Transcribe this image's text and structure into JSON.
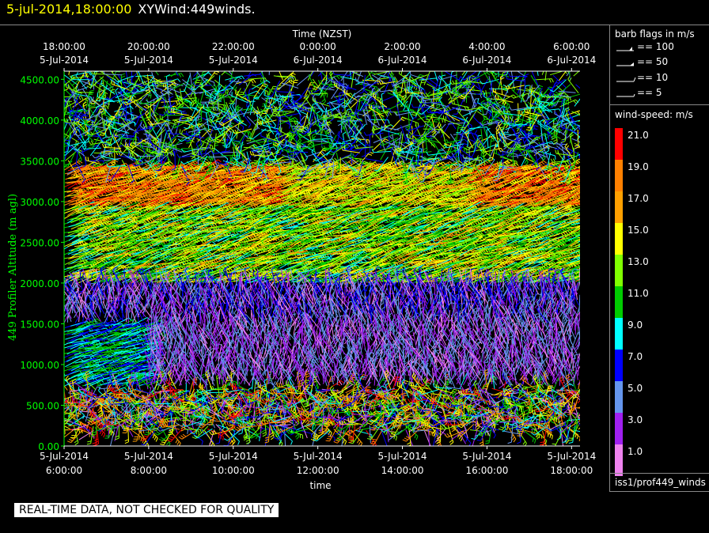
{
  "title": {
    "datetime": "5-jul-2014,18:00:00",
    "text": "XYWind:449winds."
  },
  "chart_data": {
    "type": "wind-barb",
    "top_axis_title": "Time (NZST)",
    "xlabel": "time",
    "ylabel": "449 Profiler Altitude (m agl)",
    "ylim": [
      0,
      4600
    ],
    "y_ticks": [
      "0.00",
      "500.00",
      "1000.00",
      "1500.00",
      "2000.00",
      "2500.00",
      "3000.00",
      "3500.00",
      "4000.00",
      "4500.00"
    ],
    "y_tick_values": [
      0,
      500,
      1000,
      1500,
      2000,
      2500,
      3000,
      3500,
      4000,
      4500
    ],
    "x_range_hours": [
      6,
      18.2
    ],
    "bottom_ticks": [
      {
        "hour": 6,
        "date": "5-Jul-2014",
        "time": "6:00:00"
      },
      {
        "hour": 8,
        "date": "5-Jul-2014",
        "time": "8:00:00"
      },
      {
        "hour": 10,
        "date": "5-Jul-2014",
        "time": "10:00:00"
      },
      {
        "hour": 12,
        "date": "5-Jul-2014",
        "time": "12:00:00"
      },
      {
        "hour": 14,
        "date": "5-Jul-2014",
        "time": "14:00:00"
      },
      {
        "hour": 16,
        "date": "5-Jul-2014",
        "time": "16:00:00"
      },
      {
        "hour": 18,
        "date": "5-Jul-2014",
        "time": "18:00:00"
      }
    ],
    "top_ticks": [
      {
        "hour": 6,
        "time": "18:00:00",
        "date": "5-Jul-2014"
      },
      {
        "hour": 8,
        "time": "20:00:00",
        "date": "5-Jul-2014"
      },
      {
        "hour": 10,
        "time": "22:00:00",
        "date": "5-Jul-2014"
      },
      {
        "hour": 12,
        "time": "0:00:00",
        "date": "6-Jul-2014"
      },
      {
        "hour": 14,
        "time": "2:00:00",
        "date": "6-Jul-2014"
      },
      {
        "hour": 16,
        "time": "4:00:00",
        "date": "6-Jul-2014"
      },
      {
        "hour": 18,
        "time": "6:00:00",
        "date": "6-Jul-2014"
      }
    ],
    "speed_field_approx": [
      {
        "altitude_range": [
          300,
          700
        ],
        "speed_ms": "mixed 1-21"
      },
      {
        "altitude_range": [
          700,
          1500
        ],
        "speed_ms": "6-12 (hours 6-8), 1-5 after"
      },
      {
        "altitude_range": [
          1500,
          2000
        ],
        "speed_ms": "1-7"
      },
      {
        "altitude_range": [
          2000,
          2900
        ],
        "speed_ms": "9-17"
      },
      {
        "altitude_range": [
          2900,
          3400
        ],
        "speed_ms": "17-21"
      },
      {
        "altitude_range": [
          3400,
          4600
        ],
        "speed_ms": "mixed 5-15"
      }
    ]
  },
  "legend": {
    "barb_title": "barb flags in m/s",
    "barbs": [
      {
        "value": 100,
        "label": "== 100"
      },
      {
        "value": 50,
        "label": "== 50"
      },
      {
        "value": 10,
        "label": "== 10"
      },
      {
        "value": 5,
        "label": "== 5"
      }
    ],
    "speed_title": "wind-speed: m/s",
    "colorbar": [
      {
        "label": "21.0",
        "color": "#ff0000"
      },
      {
        "label": "19.0",
        "color": "#ff8000"
      },
      {
        "label": "17.0",
        "color": "#ffa000"
      },
      {
        "label": "15.0",
        "color": "#ffff00"
      },
      {
        "label": "13.0",
        "color": "#80ff00"
      },
      {
        "label": "11.0",
        "color": "#00cc00"
      },
      {
        "label": "9.0",
        "color": "#00ffff"
      },
      {
        "label": "7.0",
        "color": "#0000ff"
      },
      {
        "label": "5.0",
        "color": "#6495ed"
      },
      {
        "label": "3.0",
        "color": "#a020f0"
      },
      {
        "label": "1.0",
        "color": "#ee82ee"
      }
    ],
    "source": "iss1/prof449_winds"
  },
  "qc_banner": "REAL-TIME DATA, NOT CHECKED FOR QUALITY",
  "colors": {
    "axis": "#00ff00",
    "title_date": "#ffff00"
  }
}
